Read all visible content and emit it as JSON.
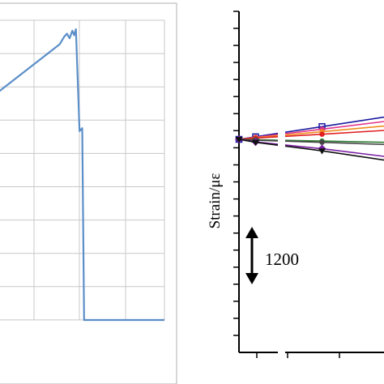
{
  "chart_data": [
    {
      "type": "line",
      "panel": "left",
      "title": "",
      "xlabel": "",
      "ylabel": "",
      "grid": true,
      "x_range": [
        0,
        10
      ],
      "y_range": [
        0,
        10
      ],
      "series": [
        {
          "color": "#5b8ec8",
          "x": [
            0.0,
            1.0,
            4.2,
            4.45,
            4.6,
            4.75,
            4.9,
            5.0,
            5.1,
            5.3,
            5.45,
            5.55,
            10.0
          ],
          "y": [
            7.2,
            7.7,
            9.2,
            9.45,
            9.55,
            9.4,
            9.65,
            9.5,
            9.7,
            6.3,
            6.4,
            0.0,
            0.0
          ]
        }
      ]
    },
    {
      "type": "line",
      "panel": "right",
      "title": "",
      "xlabel": "",
      "ylabel": "Strain/με",
      "grid": false,
      "axis_break": true,
      "x_range": [
        0,
        10
      ],
      "y_range": [
        -10,
        10
      ],
      "scale_bar": {
        "label": "1200",
        "direction": "both"
      },
      "series": [
        {
          "color": "#1a1aa0",
          "marker": "square",
          "x": [
            0,
            1,
            5,
            10
          ],
          "y": [
            0,
            0.3,
            1.5,
            3.0
          ]
        },
        {
          "color": "#e0338a",
          "marker": "circle",
          "x": [
            0,
            1,
            5,
            10
          ],
          "y": [
            0,
            0.25,
            1.2,
            2.4
          ]
        },
        {
          "color": "#f08c1e",
          "marker": "circle",
          "x": [
            0,
            1,
            5,
            10
          ],
          "y": [
            0,
            0.2,
            0.9,
            1.8
          ]
        },
        {
          "color": "#e02020",
          "marker": "circle",
          "x": [
            0,
            1,
            5,
            10
          ],
          "y": [
            0,
            0.15,
            0.6,
            1.2
          ]
        },
        {
          "color": "#2e7d32",
          "marker": "circle",
          "x": [
            0,
            1,
            5,
            10
          ],
          "y": [
            0,
            -0.05,
            -0.2,
            -0.4
          ]
        },
        {
          "color": "#444444",
          "marker": "circle",
          "x": [
            0,
            1,
            5,
            10
          ],
          "y": [
            0,
            -0.1,
            -0.35,
            -0.7
          ]
        },
        {
          "color": "#7a1fa2",
          "marker": "diamond",
          "x": [
            0,
            1,
            5,
            10
          ],
          "y": [
            0,
            -0.3,
            -1.1,
            -2.3
          ]
        },
        {
          "color": "#111111",
          "marker": "triangle-down",
          "x": [
            0,
            1,
            5,
            10
          ],
          "y": [
            0,
            -0.35,
            -1.35,
            -2.8
          ]
        }
      ]
    }
  ]
}
